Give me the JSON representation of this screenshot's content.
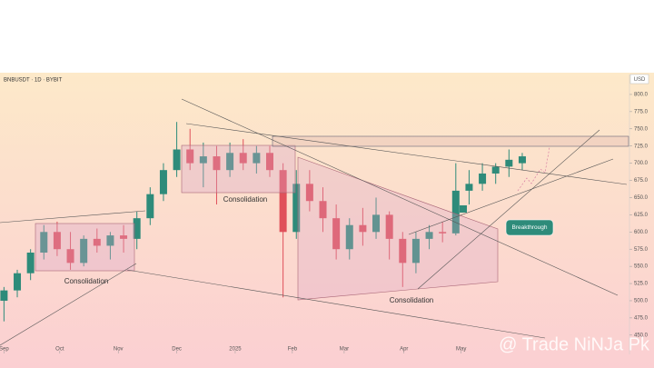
{
  "chart_data": {
    "type": "candlestick",
    "title": "BNBUSDT · 1D · BYBIT",
    "currency": "USD",
    "up_color": "#2e8b7a",
    "down_color": "#e0505a",
    "ylim": [
      422,
      829
    ],
    "yticks": [
      {
        "value": 800,
        "label": "800.0"
      },
      {
        "value": 775,
        "label": "775.0"
      },
      {
        "value": 750,
        "label": "750.0"
      },
      {
        "value": 725,
        "label": "725.0"
      },
      {
        "value": 700,
        "label": "700.0"
      },
      {
        "value": 675,
        "label": "675.0"
      },
      {
        "value": 650,
        "label": "650.0"
      },
      {
        "value": 625,
        "label": "625.0"
      },
      {
        "value": 600,
        "label": "600.0"
      },
      {
        "value": 575,
        "label": "575.0"
      },
      {
        "value": 550,
        "label": "550.0"
      },
      {
        "value": 525,
        "label": "525.0"
      },
      {
        "value": 500,
        "label": "500.0"
      },
      {
        "value": 475,
        "label": "475.0"
      },
      {
        "value": 450,
        "label": "450.0"
      }
    ],
    "xlim": [
      -0.3,
      47
    ],
    "xticks": [
      {
        "value": 0,
        "label": "Sep"
      },
      {
        "value": 4.2,
        "label": "Oct"
      },
      {
        "value": 8.6,
        "label": "Nov"
      },
      {
        "value": 13,
        "label": "Dec"
      },
      {
        "value": 17.4,
        "label": "2025"
      },
      {
        "value": 21.7,
        "label": "Feb"
      },
      {
        "value": 25.6,
        "label": "Mar"
      },
      {
        "value": 30.1,
        "label": "Apr"
      },
      {
        "value": 34.4,
        "label": "May"
      }
    ],
    "open": [
      500,
      515,
      540,
      570,
      600,
      575,
      555,
      590,
      580,
      595,
      590,
      620,
      655,
      690,
      720,
      700,
      710,
      690,
      715,
      700,
      715,
      690,
      600,
      670,
      645,
      620,
      575,
      610,
      600,
      625,
      590,
      555,
      590,
      600,
      598,
      660,
      670,
      685,
      695,
      700
    ],
    "high": [
      520,
      545,
      575,
      610,
      615,
      600,
      595,
      605,
      600,
      610,
      630,
      665,
      700,
      760,
      750,
      730,
      725,
      730,
      735,
      725,
      725,
      700,
      690,
      690,
      665,
      640,
      620,
      635,
      650,
      630,
      600,
      600,
      610,
      615,
      700,
      690,
      700,
      700,
      720,
      715
    ],
    "low": [
      470,
      505,
      530,
      560,
      565,
      545,
      550,
      570,
      560,
      570,
      575,
      610,
      645,
      680,
      690,
      665,
      640,
      680,
      690,
      685,
      680,
      505,
      590,
      630,
      600,
      560,
      560,
      580,
      590,
      560,
      520,
      540,
      575,
      585,
      595,
      640,
      660,
      670,
      680,
      690
    ],
    "close": [
      515,
      540,
      570,
      600,
      575,
      555,
      590,
      580,
      595,
      590,
      620,
      655,
      690,
      720,
      700,
      710,
      690,
      715,
      700,
      715,
      690,
      600,
      670,
      645,
      620,
      575,
      610,
      600,
      625,
      590,
      555,
      590,
      600,
      598,
      660,
      670,
      685,
      695,
      705,
      710
    ],
    "annotations": [
      "Consolidation",
      "Consolidation",
      "Consolidation",
      "Breakthrough"
    ],
    "watermark": "@ Trade NiNJa Pk"
  }
}
